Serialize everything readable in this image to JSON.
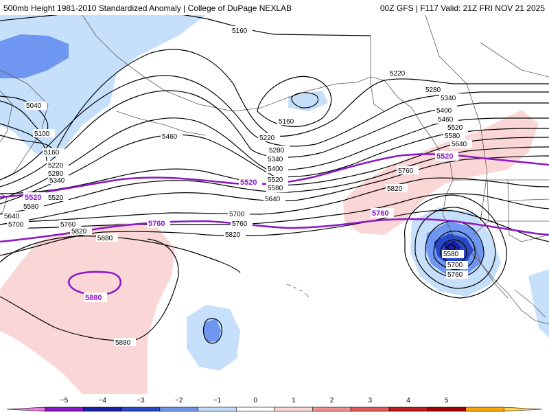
{
  "header": {
    "title": "500mb Height 1981-2010 Standardized Anomaly | College of DuPage NEXLAB",
    "run_info": "00Z GFS | F117 Valid: 21Z FRI NOV 21 2025"
  },
  "colors": {
    "contour": "#000000",
    "highlight_contour": "#8a19c8",
    "land_outline": "#5a5a5a",
    "neg_1": "#c6dffb",
    "neg_2": "#6f96f0",
    "neg_3": "#2749c8",
    "neg_4": "#1a1fa8",
    "pos_1": "#fbd6d6",
    "pos_2": "#f28e8e"
  },
  "contour_labels": {
    "5040": "5040",
    "5100": "5100",
    "5160": "5160",
    "5220": "5220",
    "5280": "5280",
    "5340": "5340",
    "5400": "5400",
    "5460": "5460",
    "5520": "5520",
    "5580": "5580",
    "5640": "5640",
    "5700": "5700",
    "5760": "5760",
    "5820": "5820",
    "5880": "5880"
  },
  "colorbar": {
    "ticks": [
      "−5",
      "−4",
      "−3",
      "−2",
      "−1",
      "0",
      "1",
      "2",
      "3",
      "4",
      "5"
    ],
    "colors": [
      "#e77be0",
      "#8a19c8",
      "#1a1fa8",
      "#2749c8",
      "#6f96f0",
      "#c6dffb",
      "#ffffff",
      "#fbd6d6",
      "#f28e8e",
      "#e45a5a",
      "#c11b1b",
      "#a80000",
      "#ffa500",
      "#ffd34d"
    ]
  }
}
